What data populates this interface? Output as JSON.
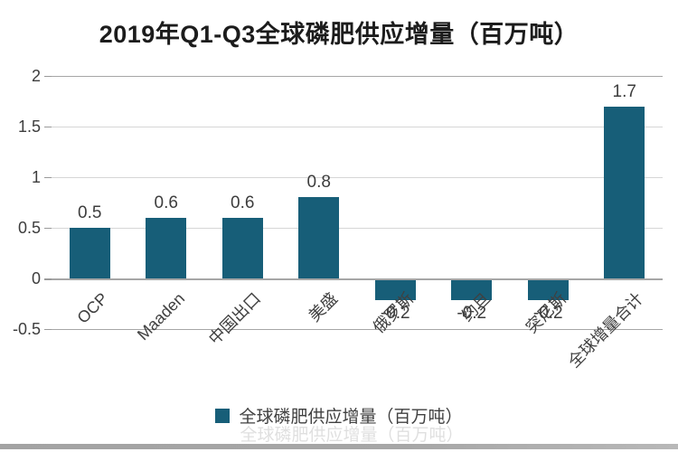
{
  "header": {
    "title": "2019年Q1-Q3全球磷肥供应增量（百万吨）"
  },
  "chart_data": {
    "type": "bar",
    "title": "2019年Q1-Q3全球磷肥供应增量（百万吨）",
    "categories": [
      "OCP",
      "Maaden",
      "中国出口",
      "美盛",
      "俄罗斯",
      "约旦",
      "突尼斯",
      "全球增量合计"
    ],
    "values": [
      0.5,
      0.6,
      0.6,
      0.8,
      -0.2,
      -0.2,
      -0.2,
      1.7
    ],
    "value_labels": [
      "0.5",
      "0.6",
      "0.6",
      "0.8",
      "-0.2",
      "-0.2",
      "-0.2",
      "1.7"
    ],
    "xlabel": "",
    "ylabel": "",
    "ylim": [
      -0.5,
      2
    ],
    "yticks": [
      2,
      1.5,
      1,
      0.5,
      0,
      -0.5
    ],
    "ytick_labels": [
      "2",
      "1.5",
      "1",
      "0.5",
      "0",
      "-0.5"
    ],
    "grid": true,
    "legend_position": "bottom",
    "category_label_rotation_deg": 45
  },
  "legend": {
    "label": "全球磷肥供应增量（百万吨）",
    "ghost_label": "全球磷肥供应增量（百万吨）"
  },
  "colors": {
    "bar": "#175e78",
    "gridline": "#d6d6d6",
    "axis_line": "#a6a6a6",
    "tick_mark": "#9a9a9a",
    "title_text": "#1c1c1c",
    "label_text": "#3d3d3d",
    "footer_bar": "#a7a7a7"
  }
}
